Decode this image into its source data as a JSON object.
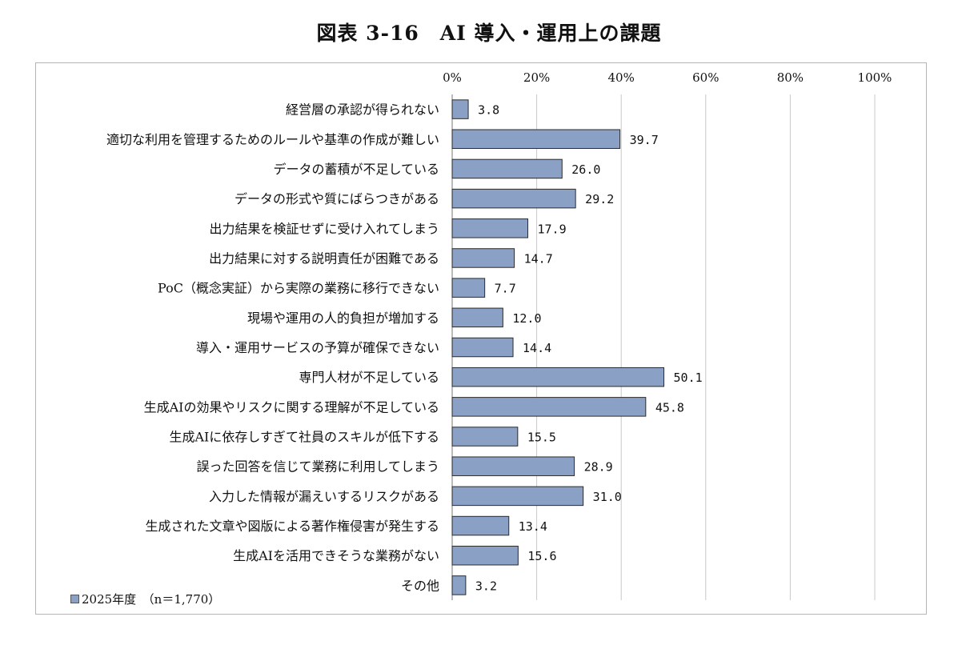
{
  "title": "図表 3-16　AI 導入・運用上の課題",
  "legend": {
    "label": "2025年度　（n＝1,770）",
    "color": "#8aa0c4"
  },
  "chart_data": {
    "type": "bar",
    "orientation": "horizontal",
    "title": "図表 3-16　AI 導入・運用上の課題",
    "xlim": [
      0,
      100
    ],
    "xticks": [
      "0%",
      "20%",
      "40%",
      "60%",
      "80%",
      "100%"
    ],
    "tick_values": [
      0,
      20,
      40,
      60,
      80,
      100
    ],
    "grid": true,
    "legend_position": "bottom-left",
    "bar_color": "#8aa0c4",
    "categories": [
      "経営層の承認が得られない",
      "適切な利用を管理するためのルールや基準の作成が難しい",
      "データの蓄積が不足している",
      "データの形式や質にばらつきがある",
      "出力結果を検証せずに受け入れてしまう",
      "出力結果に対する説明責任が困難である",
      "PoC（概念実証）から実際の業務に移行できない",
      "現場や運用の人的負担が増加する",
      "導入・運用サービスの予算が確保できない",
      "専門人材が不足している",
      "生成AIの効果やリスクに関する理解が不足している",
      "生成AIに依存しすぎて社員のスキルが低下する",
      "誤った回答を信じて業務に利用してしまう",
      "入力した情報が漏えいするリスクがある",
      "生成された文章や図版による著作権侵害が発生する",
      "生成AIを活用できそうな業務がない",
      "その他"
    ],
    "series": [
      {
        "name": "2025年度　（n＝1,770）",
        "values": [
          3.8,
          39.7,
          26.0,
          29.2,
          17.9,
          14.7,
          7.7,
          12.0,
          14.4,
          50.1,
          45.8,
          15.5,
          28.9,
          31.0,
          13.4,
          15.6,
          3.2
        ],
        "labels": [
          "3.8",
          "39.7",
          "26.0",
          "29.2",
          "17.9",
          "14.7",
          "7.7",
          "12.0",
          "14.4",
          "50.1",
          "45.8",
          "15.5",
          "28.9",
          "31.0",
          "13.4",
          "15.6",
          "3.2"
        ]
      }
    ]
  }
}
